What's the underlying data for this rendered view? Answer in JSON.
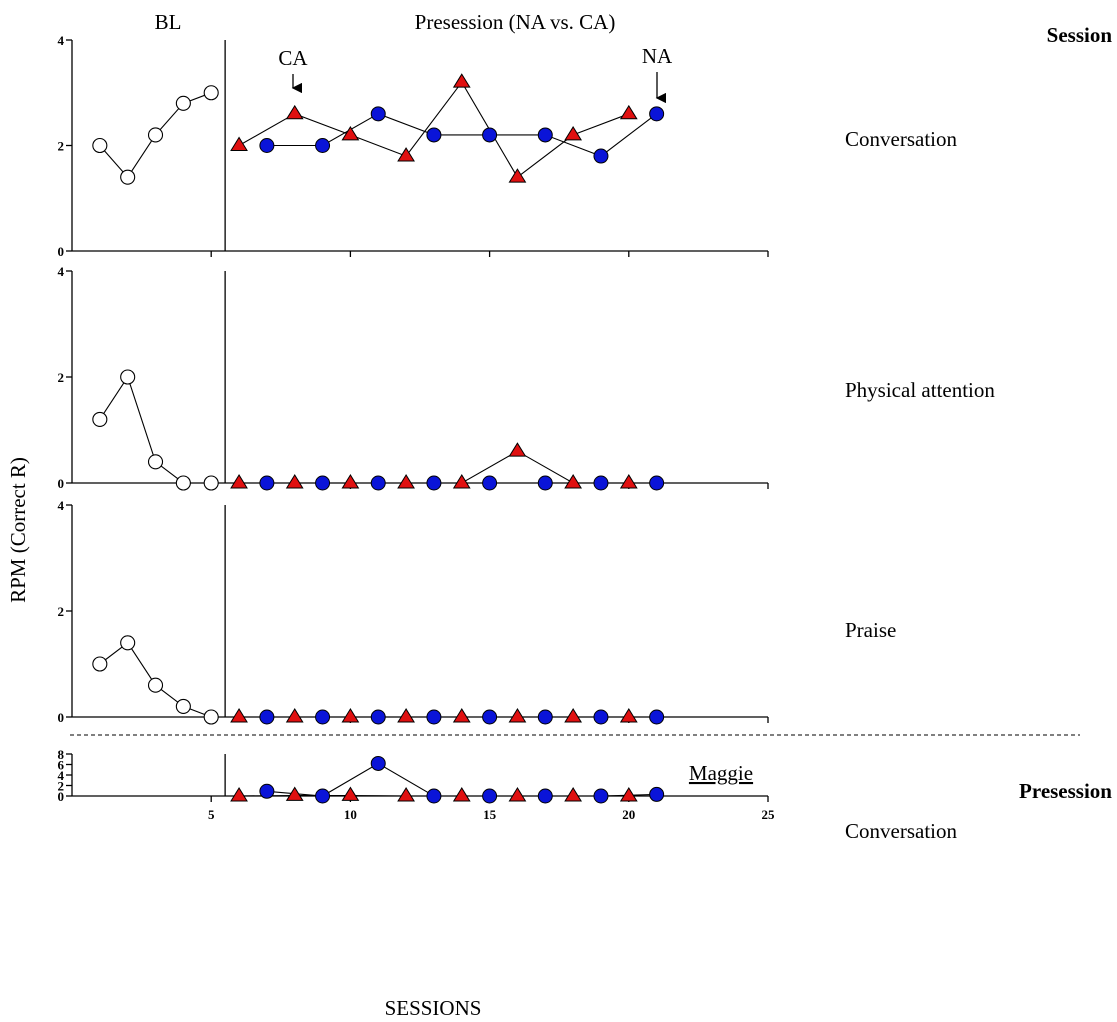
{
  "colors": {
    "baseline_fill": "#ffffff",
    "na_fill": "#0a14d8",
    "ca_fill": "#e01010",
    "stroke": "#000000"
  },
  "figure": {
    "phase_labels": {
      "baseline": "BL",
      "presession": "Presession (NA vs. CA)"
    },
    "section_labels": {
      "session": "Session",
      "presession": "Presession"
    },
    "arrow_labels": {
      "ca": "CA",
      "na": "NA"
    },
    "y_axis_title": "RPM (Correct R)",
    "x_axis_title": "SESSIONS",
    "participant": "Maggie"
  },
  "chart_data": [
    {
      "type": "line",
      "panel": "Conversation",
      "section": "Session",
      "xlim": [
        0,
        25
      ],
      "ylim": [
        0,
        4
      ],
      "yticks": [
        0,
        2,
        4
      ],
      "phase_change_after": 5,
      "series": [
        {
          "name": "BL",
          "marker": "open-circle",
          "x": [
            1,
            2,
            3,
            4,
            5
          ],
          "y": [
            2.0,
            1.4,
            2.2,
            2.8,
            3.0
          ]
        },
        {
          "name": "NA",
          "marker": "blue-circle",
          "x": [
            7,
            9,
            11,
            13,
            15,
            17,
            19,
            21
          ],
          "y": [
            2.0,
            2.0,
            2.6,
            2.2,
            2.2,
            2.2,
            1.8,
            2.6
          ]
        },
        {
          "name": "CA",
          "marker": "red-triangle",
          "x": [
            6,
            8,
            10,
            12,
            14,
            16,
            18,
            20
          ],
          "y": [
            2.0,
            2.6,
            2.2,
            1.8,
            3.2,
            1.4,
            2.2,
            2.6
          ]
        }
      ]
    },
    {
      "type": "line",
      "panel": "Physical attention",
      "section": "Session",
      "xlim": [
        0,
        25
      ],
      "ylim": [
        0,
        4
      ],
      "yticks": [
        0,
        2,
        4
      ],
      "phase_change_after": 5,
      "series": [
        {
          "name": "BL",
          "marker": "open-circle",
          "x": [
            1,
            2,
            3,
            4,
            5
          ],
          "y": [
            1.2,
            2.0,
            0.4,
            0.0,
            0.0
          ]
        },
        {
          "name": "NA",
          "marker": "blue-circle",
          "x": [
            7,
            9,
            11,
            13,
            15,
            17,
            19,
            21
          ],
          "y": [
            0,
            0,
            0,
            0,
            0,
            0,
            0,
            0
          ]
        },
        {
          "name": "CA",
          "marker": "red-triangle",
          "x": [
            6,
            8,
            10,
            12,
            14,
            16,
            18,
            20
          ],
          "y": [
            0,
            0,
            0,
            0,
            0,
            0.6,
            0,
            0
          ]
        }
      ]
    },
    {
      "type": "line",
      "panel": "Praise",
      "section": "Session",
      "xlim": [
        0,
        25
      ],
      "ylim": [
        0,
        4
      ],
      "yticks": [
        0,
        2,
        4
      ],
      "phase_change_after": 5,
      "series": [
        {
          "name": "BL",
          "marker": "open-circle",
          "x": [
            1,
            2,
            3,
            4,
            5
          ],
          "y": [
            1.0,
            1.4,
            0.6,
            0.2,
            0.0
          ]
        },
        {
          "name": "NA",
          "marker": "blue-circle",
          "x": [
            7,
            9,
            11,
            13,
            15,
            17,
            19,
            21
          ],
          "y": [
            0,
            0,
            0,
            0,
            0,
            0,
            0,
            0
          ]
        },
        {
          "name": "CA",
          "marker": "red-triangle",
          "x": [
            6,
            8,
            10,
            12,
            14,
            16,
            18,
            20
          ],
          "y": [
            0,
            0,
            0,
            0,
            0,
            0,
            0,
            0
          ]
        }
      ]
    },
    {
      "type": "line",
      "panel": "Conversation",
      "section": "Presession",
      "xlim": [
        0,
        25
      ],
      "ylim": [
        0,
        8
      ],
      "yticks": [
        0,
        2,
        4,
        6,
        8
      ],
      "xticks": [
        5,
        10,
        15,
        20,
        25
      ],
      "phase_change_after": 5,
      "series": [
        {
          "name": "NA",
          "marker": "blue-circle",
          "x": [
            7,
            9,
            11,
            13,
            15,
            17,
            19,
            21
          ],
          "y": [
            0.9,
            0.0,
            6.2,
            0.0,
            0.0,
            0.0,
            0.0,
            0.3
          ]
        },
        {
          "name": "CA",
          "marker": "red-triangle",
          "x": [
            6,
            8,
            10,
            12,
            14,
            16,
            18,
            20
          ],
          "y": [
            0.0,
            0.1,
            0.1,
            0.0,
            0.0,
            0.0,
            0.0,
            0.0
          ]
        }
      ]
    }
  ]
}
